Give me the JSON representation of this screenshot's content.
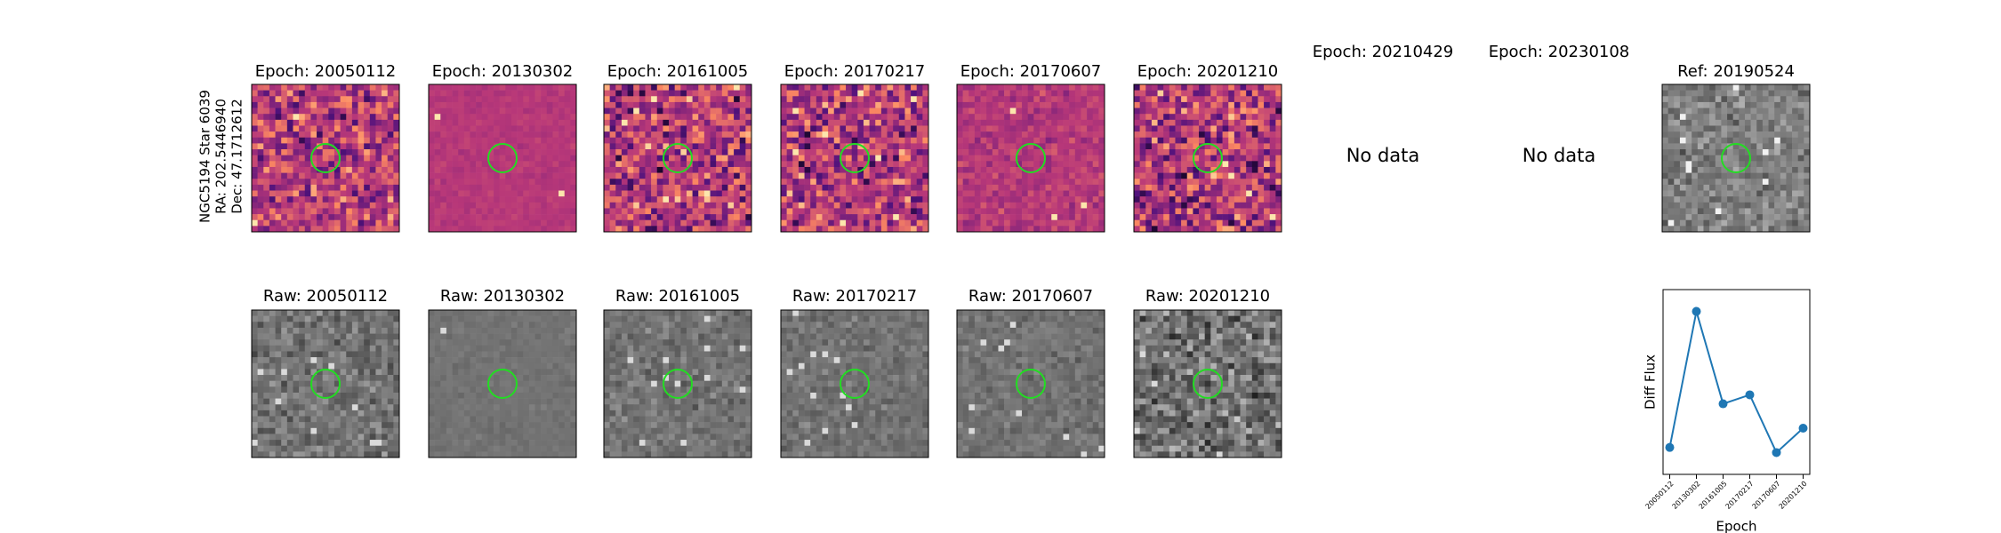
{
  "target": {
    "name": "NGC5194 Star 6039",
    "ra": "RA: 202.5446940",
    "dec": "Dec: 47.1712612"
  },
  "diff_titles": [
    "Epoch: 20050112",
    "Epoch: 20130302",
    "Epoch: 20161005",
    "Epoch: 20170217",
    "Epoch: 20170607",
    "Epoch: 20201210",
    "Epoch: 20210429",
    "Epoch: 20230108"
  ],
  "no_data": [
    "No data",
    "No data"
  ],
  "ref_title": "Ref: 20190524",
  "raw_titles": [
    "Raw: 20050112",
    "Raw: 20130302",
    "Raw: 20161005",
    "Raw: 20170217",
    "Raw: 20170607",
    "Raw: 20201210"
  ],
  "chart_data": {
    "type": "line",
    "xlabel": "Epoch",
    "ylabel": "Diff Flux",
    "categories": [
      "20050112",
      "20130302",
      "20161005",
      "20170217",
      "20170607",
      "20201210"
    ],
    "values": [
      21,
      127,
      55,
      62,
      17,
      36
    ],
    "color": "#1f77b4",
    "ylim": [
      0,
      144
    ]
  }
}
